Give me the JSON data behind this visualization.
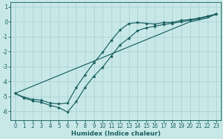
{
  "xlabel": "Humidex (Indice chaleur)",
  "bg_color": "#c8e8e8",
  "grid_color": "#aed4d4",
  "line_color": "#1a6060",
  "x_values": [
    0,
    1,
    2,
    3,
    4,
    5,
    6,
    7,
    8,
    9,
    10,
    11,
    12,
    13,
    14,
    15,
    16,
    17,
    18,
    19,
    20,
    21,
    22,
    23
  ],
  "line_zigzag": [
    -4.8,
    -5.1,
    -5.3,
    -5.4,
    -5.6,
    -5.75,
    -6.05,
    -5.35,
    -4.4,
    -3.65,
    -3.05,
    -2.3,
    -1.55,
    -1.1,
    -0.6,
    -0.4,
    -0.3,
    -0.18,
    -0.1,
    0.0,
    0.1,
    0.2,
    0.35,
    0.52
  ],
  "line_upper": [
    -4.8,
    -5.05,
    -5.2,
    -5.25,
    -5.45,
    -5.5,
    -5.45,
    -4.4,
    -3.55,
    -2.75,
    -2.05,
    -1.25,
    -0.55,
    -0.12,
    -0.05,
    -0.1,
    -0.15,
    -0.05,
    -0.05,
    0.1,
    0.15,
    0.25,
    0.38,
    0.52
  ],
  "line_diag": [
    -4.8,
    -4.56,
    -4.32,
    -4.08,
    -3.84,
    -3.6,
    -3.36,
    -3.12,
    -2.88,
    -2.64,
    -2.4,
    -2.16,
    -1.92,
    -1.68,
    -1.44,
    -1.2,
    -0.96,
    -0.72,
    -0.48,
    -0.24,
    0.0,
    0.13,
    0.26,
    0.52
  ],
  "xlim": [
    -0.5,
    23.5
  ],
  "ylim": [
    -6.6,
    1.3
  ],
  "yticks": [
    1,
    0,
    -1,
    -2,
    -3,
    -4,
    -5,
    -6
  ],
  "xticks": [
    0,
    1,
    2,
    3,
    4,
    5,
    6,
    7,
    8,
    9,
    10,
    11,
    12,
    13,
    14,
    15,
    16,
    17,
    18,
    19,
    20,
    21,
    22,
    23
  ],
  "marker": "*",
  "markersize": 3.0,
  "linewidth": 0.9,
  "tick_fontsize": 5.5,
  "xlabel_fontsize": 6.5
}
